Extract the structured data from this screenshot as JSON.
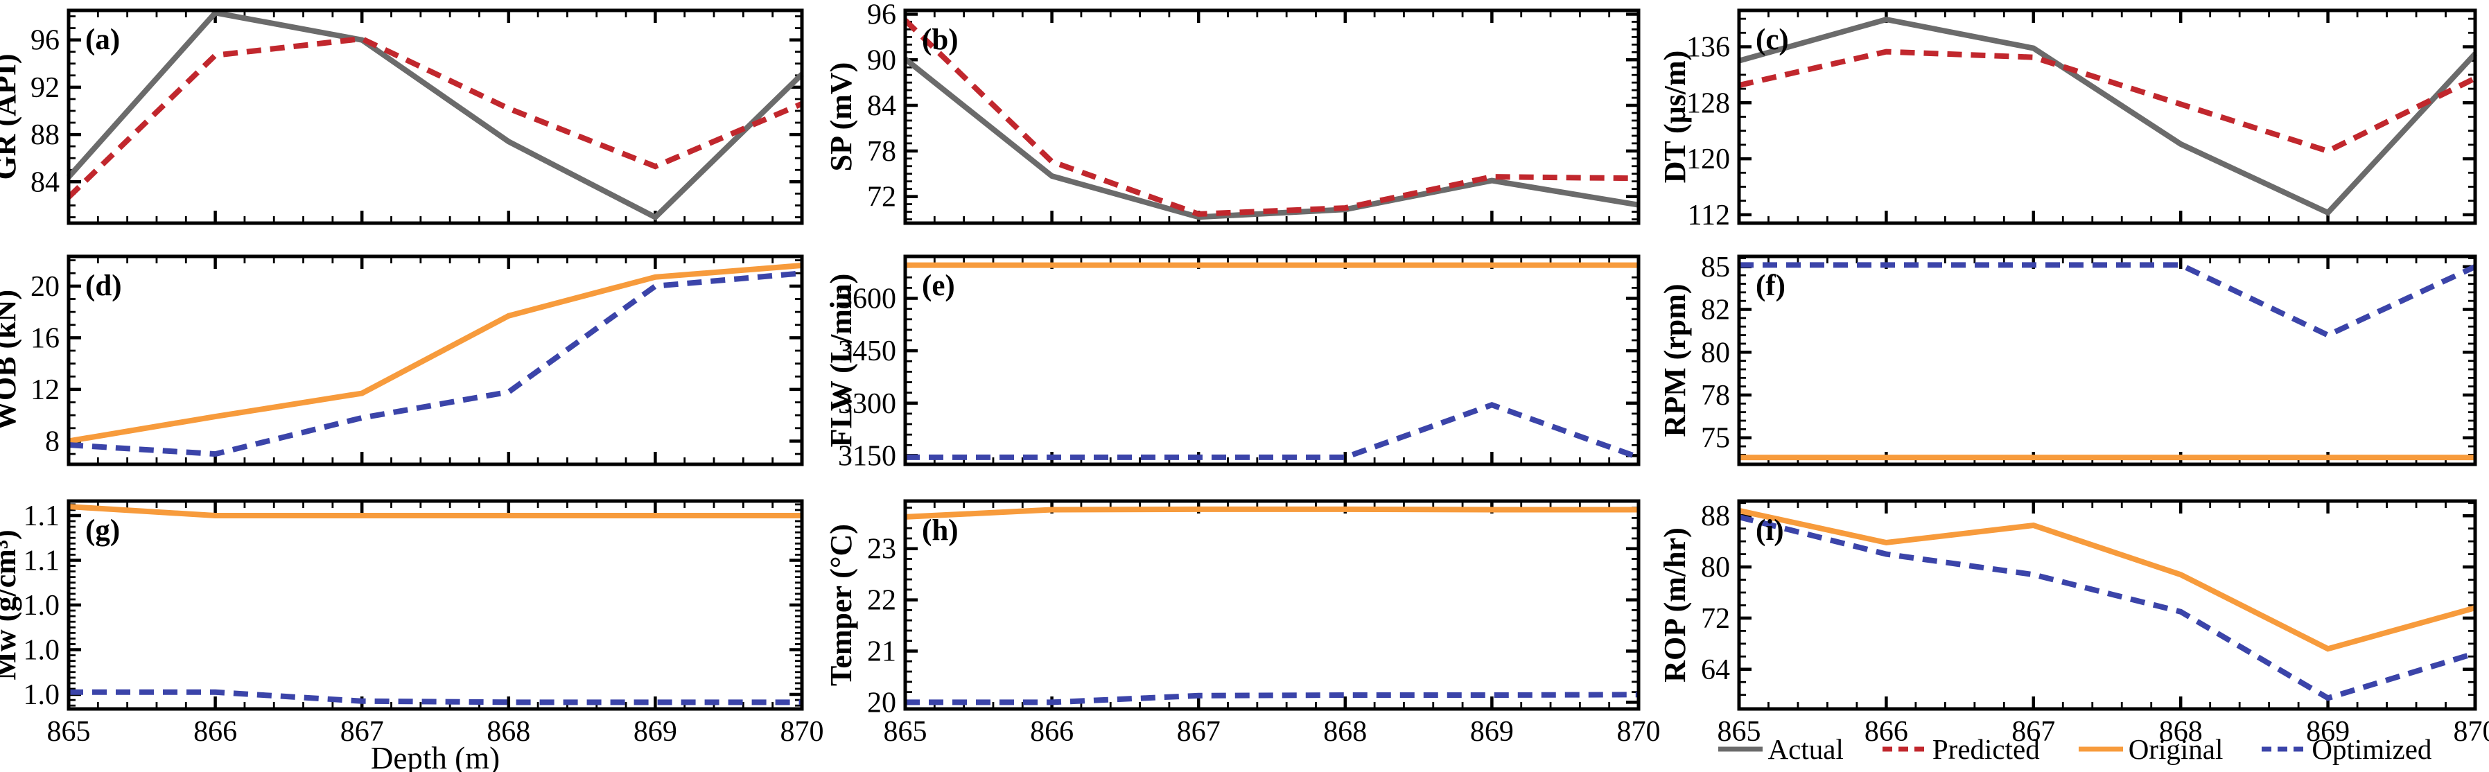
{
  "figure": {
    "background": "#ffffff",
    "xlabel": "Depth (m)"
  },
  "colors": {
    "actual": "#6b6b6b",
    "predicted": "#c1272d",
    "original": "#f79b3c",
    "optimized": "#3b44a9",
    "axis": "#000000"
  },
  "legend": {
    "items": [
      {
        "label": "Actual",
        "color_key": "actual",
        "style": "solid"
      },
      {
        "label": "Predicted",
        "color_key": "predicted",
        "style": "dashed"
      },
      {
        "label": "Original",
        "color_key": "original",
        "style": "solid"
      },
      {
        "label": "Optimized",
        "color_key": "optimized",
        "style": "dashed"
      }
    ]
  },
  "chart_data": [
    {
      "type": "line",
      "panel": "(a)",
      "ylabel": "GR (API)",
      "x": [
        865,
        866,
        867,
        868,
        869,
        870
      ],
      "xlim": [
        865,
        870
      ],
      "xticks": [
        865,
        866,
        867,
        868,
        869,
        870
      ],
      "xminor_step": 0.2,
      "ylim": [
        80.5,
        98.5
      ],
      "yminor_step": 1,
      "yticks": [
        {
          "v": 84,
          "label": "84"
        },
        {
          "v": 88,
          "label": "88"
        },
        {
          "v": 92,
          "label": "92"
        },
        {
          "v": 96,
          "label": "96"
        }
      ],
      "show_xtick_labels": false,
      "series": [
        {
          "name": "Actual",
          "color_key": "actual",
          "style": "solid",
          "values": [
            84.4,
            98.3,
            96.0,
            87.4,
            81.0,
            93.1
          ]
        },
        {
          "name": "Predicted",
          "color_key": "predicted",
          "style": "dashed",
          "values": [
            82.7,
            94.7,
            96.1,
            90.2,
            85.3,
            90.6
          ]
        }
      ]
    },
    {
      "type": "line",
      "panel": "(b)",
      "ylabel": "SP (mV)",
      "x": [
        865,
        866,
        867,
        868,
        869,
        870
      ],
      "xlim": [
        865,
        870
      ],
      "xticks": [
        865,
        866,
        867,
        868,
        869,
        870
      ],
      "xminor_step": 0.2,
      "ylim": [
        68.5,
        96.5
      ],
      "yminor_step": 1,
      "yticks": [
        {
          "v": 72,
          "label": "72"
        },
        {
          "v": 78,
          "label": "78"
        },
        {
          "v": 84,
          "label": "84"
        },
        {
          "v": 90,
          "label": "90"
        },
        {
          "v": 96,
          "label": "96"
        }
      ],
      "show_xtick_labels": false,
      "series": [
        {
          "name": "Actual",
          "color_key": "actual",
          "style": "solid",
          "values": [
            90.1,
            74.7,
            69.3,
            70.3,
            74.1,
            70.9
          ]
        },
        {
          "name": "Predicted",
          "color_key": "predicted",
          "style": "dashed",
          "values": [
            95.2,
            76.6,
            69.7,
            70.5,
            74.6,
            74.4
          ]
        }
      ]
    },
    {
      "type": "line",
      "panel": "(c)",
      "ylabel": "DT (μs/m)",
      "x": [
        865,
        866,
        867,
        868,
        869,
        870
      ],
      "xlim": [
        865,
        870
      ],
      "xticks": [
        865,
        866,
        867,
        868,
        869,
        870
      ],
      "xminor_step": 0.2,
      "ylim": [
        110.8,
        141.2
      ],
      "yminor_step": 2,
      "yticks": [
        {
          "v": 112,
          "label": "112"
        },
        {
          "v": 120,
          "label": "120"
        },
        {
          "v": 128,
          "label": "128"
        },
        {
          "v": 136,
          "label": "136"
        }
      ],
      "show_xtick_labels": false,
      "series": [
        {
          "name": "Actual",
          "color_key": "actual",
          "style": "solid",
          "values": [
            134.0,
            139.9,
            135.8,
            122.1,
            112.3,
            135.0
          ]
        },
        {
          "name": "Predicted",
          "color_key": "predicted",
          "style": "dashed",
          "values": [
            130.5,
            135.3,
            134.5,
            127.8,
            121.1,
            131.5
          ]
        }
      ]
    },
    {
      "type": "line",
      "panel": "(d)",
      "ylabel": "WOB (kN)",
      "x": [
        865,
        866,
        867,
        868,
        869,
        870
      ],
      "xlim": [
        865,
        870
      ],
      "xticks": [
        865,
        866,
        867,
        868,
        869,
        870
      ],
      "xminor_step": 0.2,
      "ylim": [
        6.2,
        22.3
      ],
      "yminor_step": 1,
      "yticks": [
        {
          "v": 8,
          "label": "8"
        },
        {
          "v": 12,
          "label": "12"
        },
        {
          "v": 16,
          "label": "16"
        },
        {
          "v": 20,
          "label": "20"
        }
      ],
      "show_xtick_labels": false,
      "series": [
        {
          "name": "Original",
          "color_key": "original",
          "style": "solid",
          "values": [
            8.0,
            9.9,
            11.7,
            17.7,
            20.7,
            21.6
          ]
        },
        {
          "name": "Optimized",
          "color_key": "optimized",
          "style": "dashed",
          "values": [
            7.7,
            7.0,
            9.8,
            11.8,
            20.0,
            21.0
          ]
        }
      ]
    },
    {
      "type": "line",
      "panel": "(e)",
      "ylabel": "FLW (L/min)",
      "x": [
        865,
        866,
        867,
        868,
        869,
        870
      ],
      "xlim": [
        865,
        870
      ],
      "xticks": [
        865,
        866,
        867,
        868,
        869,
        870
      ],
      "xminor_step": 0.2,
      "ylim": [
        3125,
        3720
      ],
      "yminor_step": 30,
      "yticks": [
        {
          "v": 3150,
          "label": "3150"
        },
        {
          "v": 3300,
          "label": "3300"
        },
        {
          "v": 3450,
          "label": "3450"
        },
        {
          "v": 3600,
          "label": "3600"
        }
      ],
      "show_xtick_labels": false,
      "series": [
        {
          "name": "Original",
          "color_key": "original",
          "style": "solid",
          "values": [
            3695,
            3695,
            3695,
            3695,
            3695,
            3695
          ]
        },
        {
          "name": "Optimized",
          "color_key": "optimized",
          "style": "dashed",
          "values": [
            3145,
            3145,
            3145,
            3145,
            3295,
            3145
          ]
        }
      ]
    },
    {
      "type": "line",
      "panel": "(f)",
      "ylabel": "RPM (rpm)",
      "x": [
        865,
        866,
        867,
        868,
        869,
        870
      ],
      "xlim": [
        865,
        870
      ],
      "xticks": [
        865,
        866,
        867,
        868,
        869,
        870
      ],
      "xminor_step": 0.2,
      "ylim": [
        73.45,
        85.6
      ],
      "yminor_step": 0.5,
      "yticks": [
        {
          "v": 75,
          "label": "75"
        },
        {
          "v": 77.5,
          "label": "78"
        },
        {
          "v": 80,
          "label": "80"
        },
        {
          "v": 82.5,
          "label": "82"
        },
        {
          "v": 85,
          "label": "85"
        }
      ],
      "show_xtick_labels": false,
      "series": [
        {
          "name": "Original",
          "color_key": "original",
          "style": "solid",
          "values": [
            73.85,
            73.85,
            73.85,
            73.85,
            73.85,
            73.85
          ]
        },
        {
          "name": "Optimized",
          "color_key": "optimized",
          "style": "dashed",
          "values": [
            85.1,
            85.1,
            85.1,
            85.1,
            81.0,
            85.0
          ]
        }
      ]
    },
    {
      "type": "line",
      "panel": "(g)",
      "ylabel": "Mw (g/cm³)",
      "x": [
        865,
        866,
        867,
        868,
        869,
        870
      ],
      "xlim": [
        865,
        870
      ],
      "xticks": [
        865,
        866,
        867,
        868,
        869,
        870
      ],
      "xminor_step": 0.2,
      "ylim": [
        0.947,
        1.133
      ],
      "yminor_step": 0.005,
      "yticks": [
        {
          "v": 0.96,
          "label": "1.0"
        },
        {
          "v": 1.0,
          "label": "1.0"
        },
        {
          "v": 1.04,
          "label": "1.0"
        },
        {
          "v": 1.08,
          "label": "1.1"
        },
        {
          "v": 1.12,
          "label": "1.1"
        }
      ],
      "show_xtick_labels": true,
      "series": [
        {
          "name": "Original",
          "color_key": "original",
          "style": "solid",
          "values": [
            1.128,
            1.12,
            1.12,
            1.12,
            1.12,
            1.12
          ]
        },
        {
          "name": "Optimized",
          "color_key": "optimized",
          "style": "dashed",
          "values": [
            0.962,
            0.962,
            0.954,
            0.953,
            0.953,
            0.953
          ]
        }
      ]
    },
    {
      "type": "line",
      "panel": "(h)",
      "ylabel": "Temper (°C)",
      "x": [
        865,
        866,
        867,
        868,
        869,
        870
      ],
      "xlim": [
        865,
        870
      ],
      "xticks": [
        865,
        866,
        867,
        868,
        869,
        870
      ],
      "xminor_step": 0.2,
      "ylim": [
        19.87,
        23.93
      ],
      "yminor_step": 0.2,
      "yticks": [
        {
          "v": 20,
          "label": "20"
        },
        {
          "v": 21,
          "label": "21"
        },
        {
          "v": 22,
          "label": "22"
        },
        {
          "v": 23,
          "label": "23"
        }
      ],
      "show_xtick_labels": true,
      "series": [
        {
          "name": "Original",
          "color_key": "original",
          "style": "solid",
          "values": [
            23.62,
            23.76,
            23.77,
            23.77,
            23.76,
            23.76
          ]
        },
        {
          "name": "Optimized",
          "color_key": "optimized",
          "style": "dashed",
          "values": [
            20.0,
            20.0,
            20.13,
            20.14,
            20.14,
            20.15
          ]
        }
      ]
    },
    {
      "type": "line",
      "panel": "(i)",
      "ylabel": "ROP (m/hr)",
      "x": [
        865,
        866,
        867,
        868,
        869,
        870
      ],
      "xlim": [
        865,
        870
      ],
      "xticks": [
        865,
        866,
        867,
        868,
        869,
        870
      ],
      "xminor_step": 0.2,
      "ylim": [
        57.8,
        90.3
      ],
      "yminor_step": 2,
      "yticks": [
        {
          "v": 64,
          "label": "64"
        },
        {
          "v": 72,
          "label": "72"
        },
        {
          "v": 80,
          "label": "80"
        },
        {
          "v": 88,
          "label": "88"
        }
      ],
      "show_xtick_labels": true,
      "series": [
        {
          "name": "Original",
          "color_key": "original",
          "style": "solid",
          "values": [
            88.8,
            83.8,
            86.5,
            78.8,
            67.2,
            73.6
          ]
        },
        {
          "name": "Optimized",
          "color_key": "optimized",
          "style": "dashed",
          "values": [
            87.8,
            82.0,
            78.8,
            73.0,
            59.5,
            66.5
          ]
        }
      ]
    }
  ]
}
